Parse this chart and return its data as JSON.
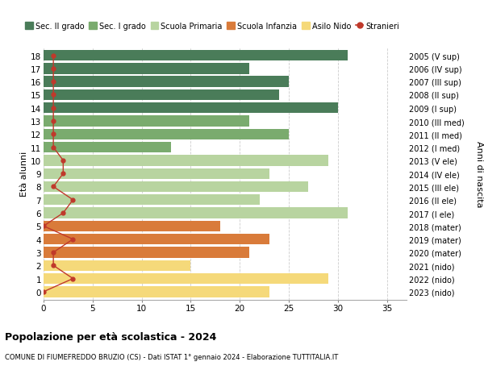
{
  "ages": [
    18,
    17,
    16,
    15,
    14,
    13,
    12,
    11,
    10,
    9,
    8,
    7,
    6,
    5,
    4,
    3,
    2,
    1,
    0
  ],
  "labels_right": [
    "2005 (V sup)",
    "2006 (IV sup)",
    "2007 (III sup)",
    "2008 (II sup)",
    "2009 (I sup)",
    "2010 (III med)",
    "2011 (II med)",
    "2012 (I med)",
    "2013 (V ele)",
    "2014 (IV ele)",
    "2015 (III ele)",
    "2016 (II ele)",
    "2017 (I ele)",
    "2018 (mater)",
    "2019 (mater)",
    "2020 (mater)",
    "2021 (nido)",
    "2022 (nido)",
    "2023 (nido)"
  ],
  "bar_values": [
    31,
    21,
    25,
    24,
    30,
    21,
    25,
    13,
    29,
    23,
    27,
    22,
    31,
    18,
    23,
    21,
    15,
    29,
    23
  ],
  "bar_colors": [
    "#4a7c59",
    "#4a7c59",
    "#4a7c59",
    "#4a7c59",
    "#4a7c59",
    "#7aab6e",
    "#7aab6e",
    "#7aab6e",
    "#b8d4a0",
    "#b8d4a0",
    "#b8d4a0",
    "#b8d4a0",
    "#b8d4a0",
    "#d97b3a",
    "#d97b3a",
    "#d97b3a",
    "#f5d97a",
    "#f5d97a",
    "#f5d97a"
  ],
  "stranieri_values": [
    1,
    1,
    1,
    1,
    1,
    1,
    1,
    1,
    2,
    2,
    1,
    3,
    2,
    0,
    3,
    1,
    1,
    3,
    0
  ],
  "stranieri_color": "#c0392b",
  "legend_labels": [
    "Sec. II grado",
    "Sec. I grado",
    "Scuola Primaria",
    "Scuola Infanzia",
    "Asilo Nido",
    "Stranieri"
  ],
  "legend_colors": [
    "#4a7c59",
    "#7aab6e",
    "#b8d4a0",
    "#d97b3a",
    "#f5d97a",
    "#c0392b"
  ],
  "ylabel": "Età alunni",
  "ylabel_right": "Anni di nascita",
  "title": "Popolazione per età scolastica - 2024",
  "subtitle": "COMUNE DI FIUMEFREDDO BRUZIO (CS) - Dati ISTAT 1° gennaio 2024 - Elaborazione TUTTITALIA.IT",
  "xlim": [
    0,
    37
  ],
  "bar_height": 0.82,
  "background_color": "#ffffff",
  "grid_color": "#cccccc"
}
